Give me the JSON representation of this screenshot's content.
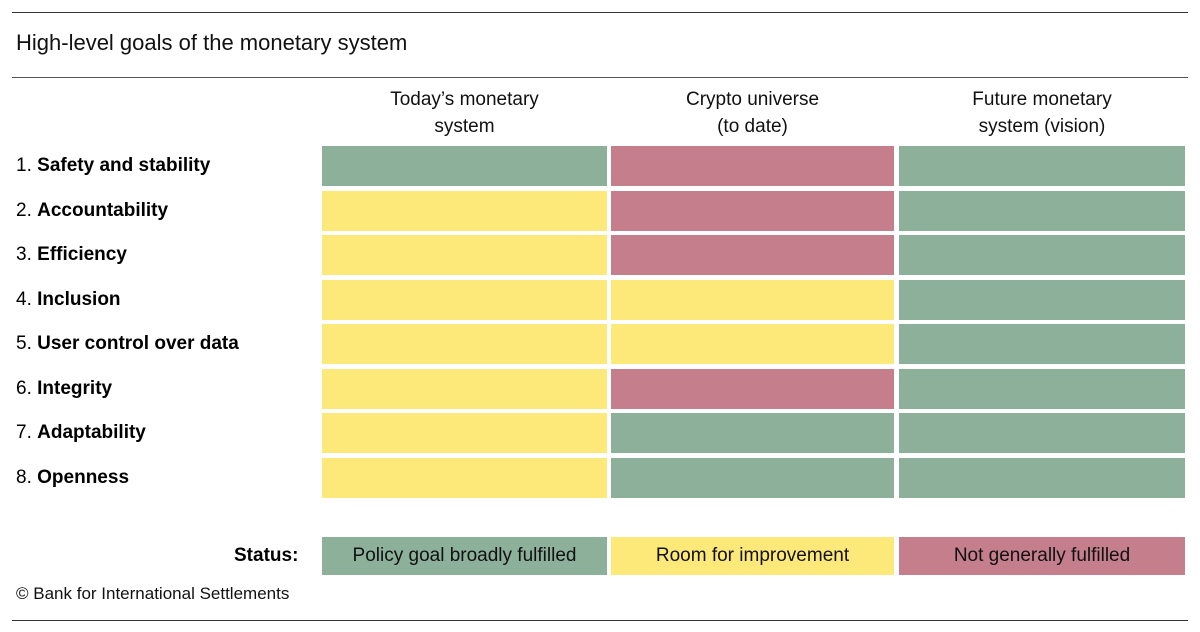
{
  "title": "High-level goals of the monetary system",
  "columns": [
    {
      "line1": "Today’s monetary",
      "line2": "system"
    },
    {
      "line1": "Crypto universe",
      "line2": "(to date)"
    },
    {
      "line1": "Future monetary",
      "line2": "system (vision)"
    }
  ],
  "colors": {
    "fulfilled": "#8db09a",
    "improvement": "#fde97a",
    "not_fulfilled": "#c47e8c"
  },
  "chart_data": {
    "type": "table",
    "title": "High-level goals of the monetary system",
    "columns": [
      "Today’s monetary system",
      "Crypto universe (to date)",
      "Future monetary system (vision)"
    ],
    "rows": [
      {
        "num": "1.",
        "goal": "Safety and stability",
        "status": [
          "fulfilled",
          "not_fulfilled",
          "fulfilled"
        ]
      },
      {
        "num": "2.",
        "goal": "Accountability",
        "status": [
          "improvement",
          "not_fulfilled",
          "fulfilled"
        ]
      },
      {
        "num": "3.",
        "goal": "Efficiency",
        "status": [
          "improvement",
          "not_fulfilled",
          "fulfilled"
        ]
      },
      {
        "num": "4.",
        "goal": "Inclusion",
        "status": [
          "improvement",
          "improvement",
          "fulfilled"
        ]
      },
      {
        "num": "5.",
        "goal": "User control over data",
        "status": [
          "improvement",
          "improvement",
          "fulfilled"
        ]
      },
      {
        "num": "6.",
        "goal": "Integrity",
        "status": [
          "improvement",
          "not_fulfilled",
          "fulfilled"
        ]
      },
      {
        "num": "7.",
        "goal": "Adaptability",
        "status": [
          "improvement",
          "fulfilled",
          "fulfilled"
        ]
      },
      {
        "num": "8.",
        "goal": "Openness",
        "status": [
          "improvement",
          "fulfilled",
          "fulfilled"
        ]
      }
    ]
  },
  "legend": {
    "label": "Status:",
    "items": [
      {
        "key": "fulfilled",
        "text": "Policy goal broadly fulfilled"
      },
      {
        "key": "improvement",
        "text": "Room for improvement"
      },
      {
        "key": "not_fulfilled",
        "text": "Not generally fulfilled"
      }
    ]
  },
  "source": "© Bank for International Settlements"
}
